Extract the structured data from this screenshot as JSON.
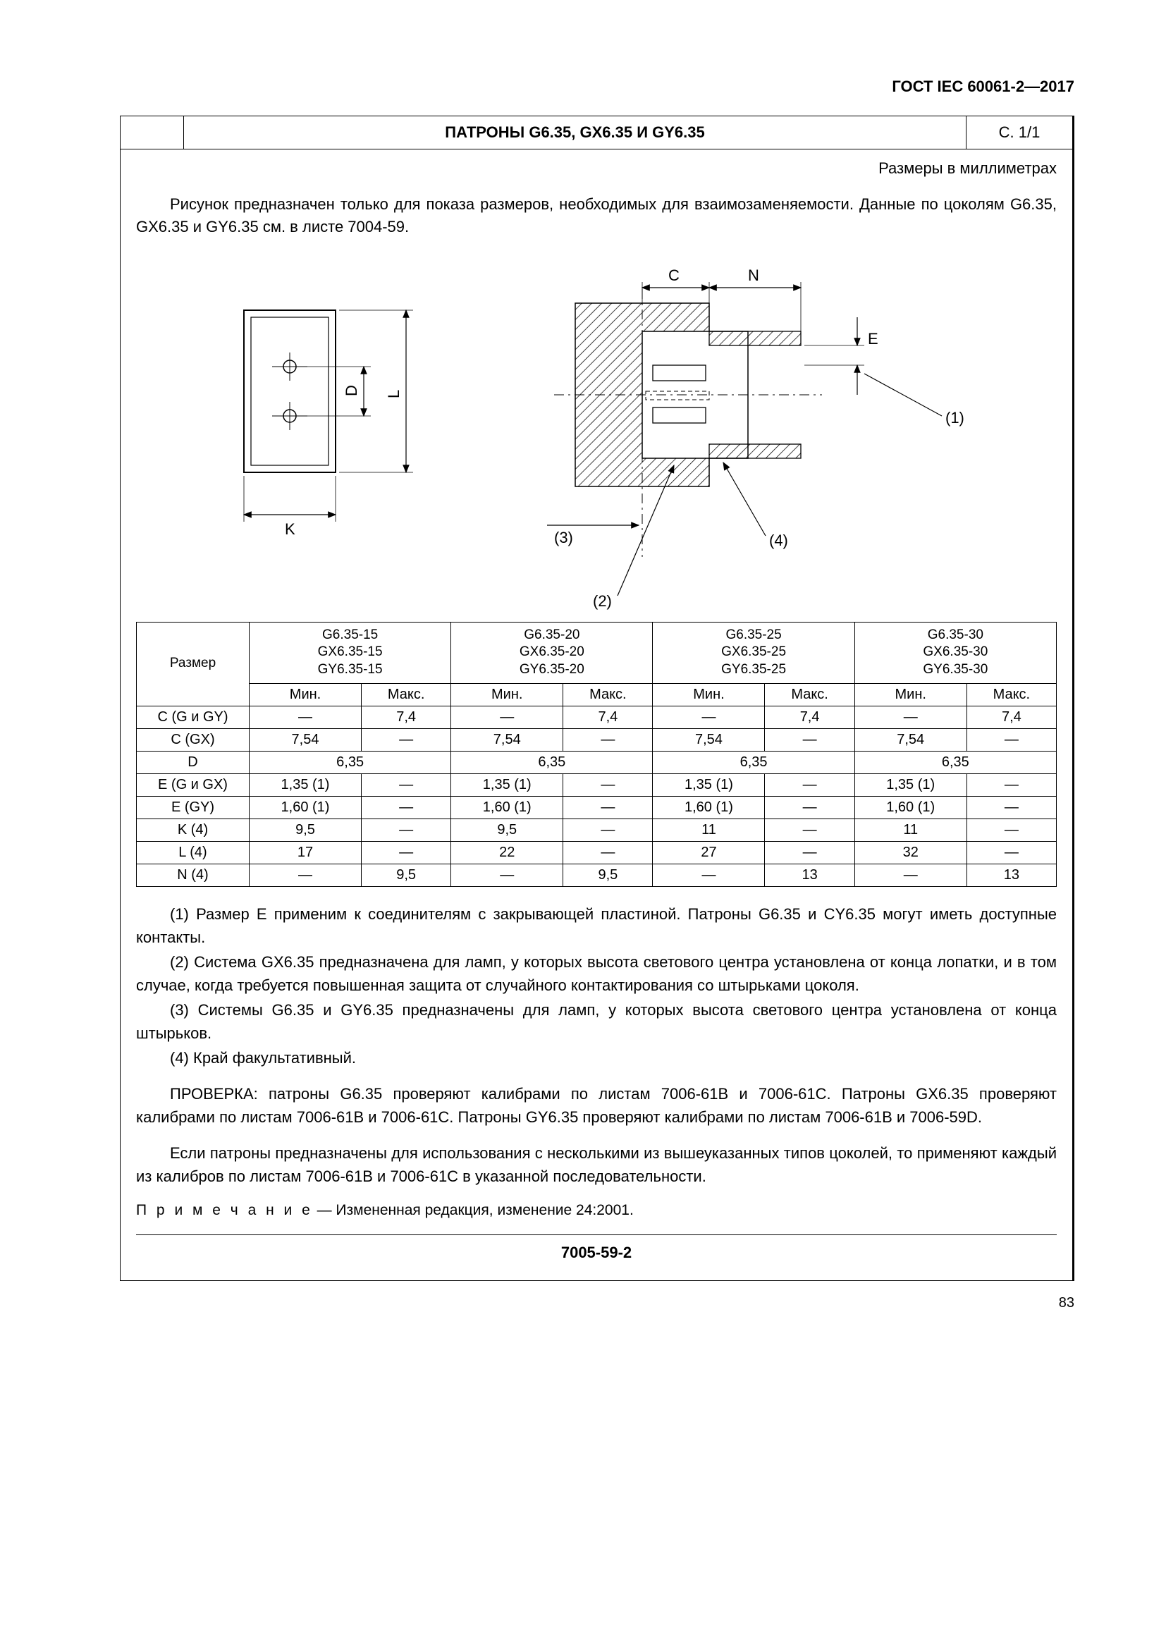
{
  "doc_header": "ГОСТ IEC 60061-2—2017",
  "title": "ПАТРОНЫ G6.35, GX6.35 И GY6.35",
  "page_ref": "С. 1/1",
  "units_note": "Размеры в миллиметрах",
  "intro": "Рисунок предназначен только для показа размеров, необходимых для взаимозаменяемости. Данные по цоколям G6.35, GX6.35 и GY6.35 см. в листе 7004-59.",
  "diagram": {
    "labels": {
      "C": "C",
      "N": "N",
      "D": "D",
      "L": "L",
      "K": "K",
      "E": "E"
    },
    "refs": {
      "r1": "(1)",
      "r2": "(2)",
      "r3": "(3)",
      "r4": "(4)"
    }
  },
  "table": {
    "row_header": "Размер",
    "groups": [
      {
        "lines": [
          "G6.35-15",
          "GX6.35-15",
          "GY6.35-15"
        ]
      },
      {
        "lines": [
          "G6.35-20",
          "GX6.35-20",
          "GY6.35-20"
        ]
      },
      {
        "lines": [
          "G6.35-25",
          "GX6.35-25",
          "GY6.35-25"
        ]
      },
      {
        "lines": [
          "G6.35-30",
          "GX6.35-30",
          "GY6.35-30"
        ]
      }
    ],
    "sub_min": "Мин.",
    "sub_max": "Макс.",
    "rows": [
      {
        "label": "C (G и GY)",
        "cells": [
          "—",
          "7,4",
          "—",
          "7,4",
          "—",
          "7,4",
          "—",
          "7,4"
        ]
      },
      {
        "label": "C (GX)",
        "cells": [
          "7,54",
          "—",
          "7,54",
          "—",
          "7,54",
          "—",
          "7,54",
          "—"
        ]
      },
      {
        "label": "D",
        "merged": [
          "6,35",
          "6,35",
          "6,35",
          "6,35"
        ]
      },
      {
        "label": "E (G и GX)",
        "cells": [
          "1,35 (1)",
          "—",
          "1,35 (1)",
          "—",
          "1,35 (1)",
          "—",
          "1,35 (1)",
          "—"
        ]
      },
      {
        "label": "E (GY)",
        "cells": [
          "1,60 (1)",
          "—",
          "1,60 (1)",
          "—",
          "1,60 (1)",
          "—",
          "1,60 (1)",
          "—"
        ]
      },
      {
        "label": "K (4)",
        "cells": [
          "9,5",
          "—",
          "9,5",
          "—",
          "11",
          "—",
          "11",
          "—"
        ]
      },
      {
        "label": "L (4)",
        "cells": [
          "17",
          "—",
          "22",
          "—",
          "27",
          "—",
          "32",
          "—"
        ]
      },
      {
        "label": "N (4)",
        "cells": [
          "—",
          "9,5",
          "—",
          "9,5",
          "—",
          "13",
          "—",
          "13"
        ]
      }
    ]
  },
  "notes": {
    "n1": "(1) Размер E применим к соединителям с закрывающей пластиной. Патроны G6.35 и CY6.35 могут иметь доступные контакты.",
    "n2": "(2) Система GX6.35 предназначена для ламп, у которых высота светового центра установлена от конца лопатки, и в том случае, когда требуется повышенная защита от случайного контактирования со штырьками цоколя.",
    "n3": "(3) Системы G6.35 и GY6.35 предназначены для ламп, у которых высота светового центра установлена от конца штырьков.",
    "n4": "(4) Край факультативный."
  },
  "check1": "ПРОВЕРКА: патроны G6.35 проверяют калибрами по листам 7006-61B и 7006-61C. Патроны GX6.35 проверяют калибрами по листам 7006-61B и 7006-61C. Патроны GY6.35 проверяют калибрами по листам 7006-61B и 7006-59D.",
  "check2": "Если патроны предназначены для использования с несколькими из вышеуказанных типов цоколей, то применяют каждый из калибров по листам 7006-61B и 7006-61C в указанной последовательности.",
  "edition_note_prefix": "П р и м е ч а н и е",
  "edition_note_rest": "  —  Измененная редакция, изменение 24:2001.",
  "sheet_number": "7005-59-2",
  "page_number": "83",
  "colors": {
    "text": "#000000",
    "bg": "#ffffff",
    "border": "#000000",
    "hatch": "#000000"
  }
}
